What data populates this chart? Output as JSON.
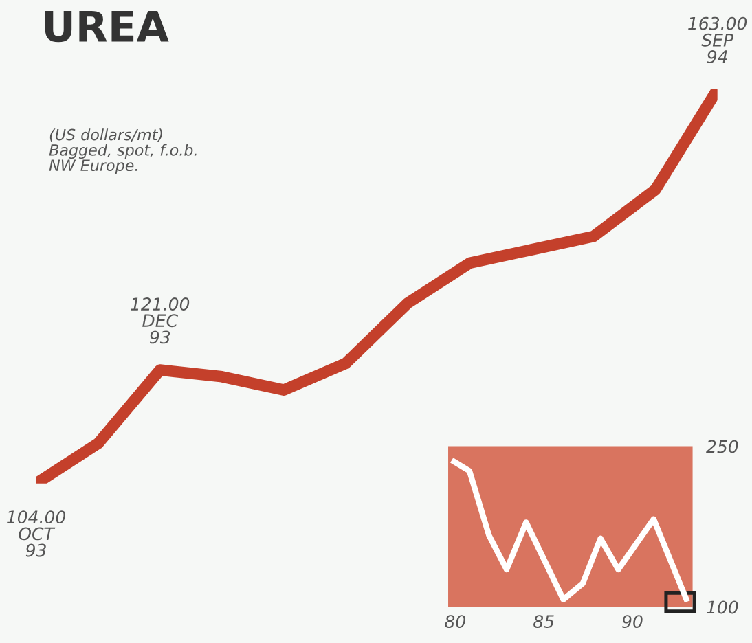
{
  "chart_data": [
    {
      "type": "line",
      "title": "UREA",
      "annotations": [
        "(US dollars/mt)\nBagged, spot, f.o.b.\nNW Europe."
      ],
      "categories": [
        null,
        null,
        null,
        null,
        null,
        null,
        null,
        null,
        null,
        null,
        null,
        null
      ],
      "series": [
        {
          "color": "#c4402b",
          "values": [
            104,
            110,
            121,
            120,
            118,
            122,
            131,
            137,
            139,
            141,
            148,
            163
          ],
          "value_labels": [
            "104.00\nOCT\n93",
            null,
            "121.00\nDEC\n93",
            null,
            null,
            null,
            null,
            null,
            null,
            null,
            null,
            "163.00\nSEP\n94"
          ]
        }
      ],
      "grid": false,
      "legend": false,
      "marker": "none",
      "line_style": "solid"
    },
    {
      "type": "line",
      "x": [
        79.8,
        80.8,
        81.9,
        82.9,
        84,
        86.1,
        87.2,
        88.2,
        89.2,
        91.2,
        93.1
      ],
      "series": [
        {
          "color": "#ffffff",
          "values": [
            237,
            227,
            167,
            135,
            179,
            107,
            122,
            164,
            135,
            182,
            105
          ]
        }
      ],
      "xlim": [
        79.6,
        93.4
      ],
      "ylim": [
        100,
        250
      ],
      "xticks": [
        80,
        85,
        90
      ],
      "yticks": [
        100,
        250
      ],
      "grid": false,
      "legend": false,
      "marker": "none",
      "line_style": "solid"
    }
  ]
}
